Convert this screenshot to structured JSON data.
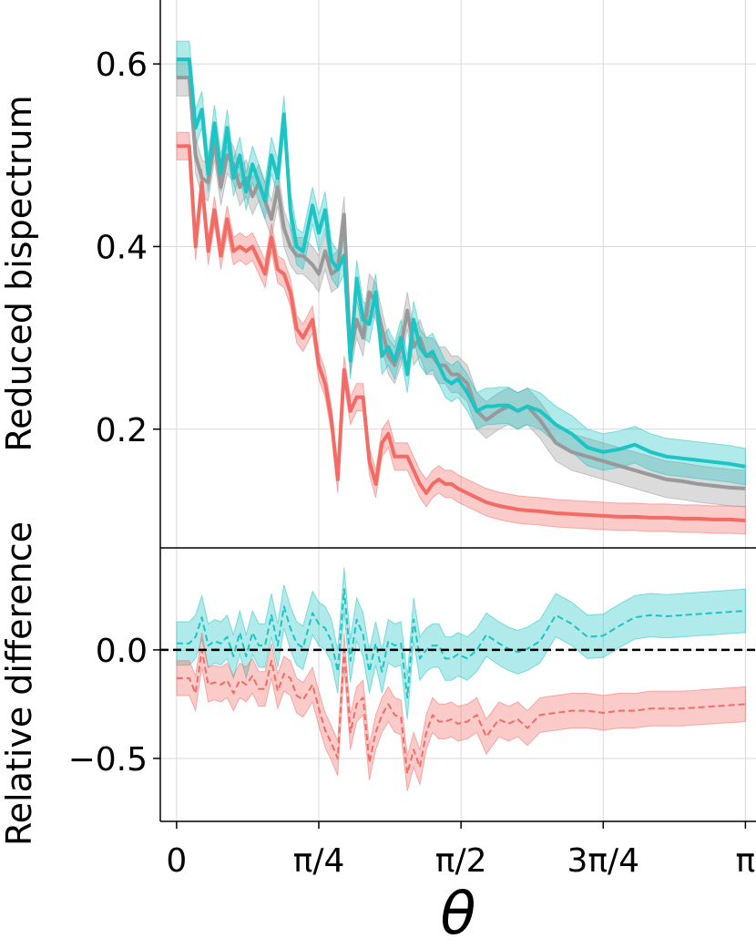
{
  "chart_data": [
    {
      "type": "line",
      "ylabel": "Reduced bispectrum",
      "xlim": [
        -0.09,
        3.2
      ],
      "ylim": [
        0.07,
        0.67
      ],
      "grid": true,
      "yticks": [
        0.2,
        0.4,
        0.6
      ],
      "ytick_labels": [
        "0.2",
        "0.4",
        "0.6"
      ],
      "colors": {
        "gray": "#999999",
        "cyan": "#1cc4c4",
        "red": "#f26b64"
      },
      "x": [
        0.0,
        0.0698,
        0.1047,
        0.1396,
        0.1745,
        0.2094,
        0.2443,
        0.2793,
        0.3142,
        0.3491,
        0.384,
        0.4189,
        0.4538,
        0.4887,
        0.5236,
        0.5585,
        0.5934,
        0.6283,
        0.6632,
        0.6981,
        0.7505,
        0.7854,
        0.8203,
        0.8552,
        0.8901,
        0.925,
        0.9599,
        0.9948,
        1.0297,
        1.0646,
        1.0995,
        1.1345,
        1.1694,
        1.2043,
        1.2392,
        1.2741,
        1.309,
        1.3439,
        1.3788,
        1.4137,
        1.4486,
        1.4835,
        1.5184,
        1.5533,
        1.6057,
        1.6581,
        1.7104,
        1.7453,
        1.7802,
        1.8326,
        1.885,
        1.9373,
        2.0071,
        2.0944,
        2.1817,
        2.2689,
        2.3562,
        2.4435,
        2.5307,
        2.618,
        2.7053,
        2.7925,
        2.8798,
        2.9671,
        3.0543,
        3.1416
      ],
      "series": [
        {
          "color": "gray",
          "style": "solid",
          "values": [
            0.585,
            0.585,
            0.5,
            0.475,
            0.47,
            0.515,
            0.465,
            0.5,
            0.49,
            0.465,
            0.475,
            0.455,
            0.47,
            0.45,
            0.43,
            0.465,
            0.42,
            0.4,
            0.39,
            0.39,
            0.38,
            0.37,
            0.395,
            0.37,
            0.375,
            0.435,
            0.28,
            0.32,
            0.3,
            0.35,
            0.34,
            0.31,
            0.28,
            0.27,
            0.29,
            0.33,
            0.29,
            0.3,
            0.28,
            0.28,
            0.27,
            0.27,
            0.26,
            0.26,
            0.25,
            0.22,
            0.21,
            0.215,
            0.22,
            0.225,
            0.22,
            0.225,
            0.21,
            0.185,
            0.175,
            0.17,
            0.165,
            0.16,
            0.155,
            0.15,
            0.145,
            0.143,
            0.14,
            0.138,
            0.136,
            0.135
          ],
          "band": 0.02
        },
        {
          "color": "cyan",
          "style": "solid",
          "values": [
            0.605,
            0.605,
            0.53,
            0.55,
            0.48,
            0.535,
            0.48,
            0.53,
            0.475,
            0.5,
            0.46,
            0.49,
            0.47,
            0.45,
            0.5,
            0.475,
            0.545,
            0.44,
            0.4,
            0.395,
            0.445,
            0.415,
            0.44,
            0.385,
            0.375,
            0.39,
            0.275,
            0.365,
            0.32,
            0.315,
            0.35,
            0.28,
            0.29,
            0.275,
            0.3,
            0.26,
            0.32,
            0.29,
            0.28,
            0.285,
            0.27,
            0.255,
            0.25,
            0.255,
            0.24,
            0.22,
            0.225,
            0.225,
            0.226,
            0.226,
            0.22,
            0.225,
            0.22,
            0.205,
            0.195,
            0.18,
            0.175,
            0.178,
            0.183,
            0.175,
            0.17,
            0.168,
            0.166,
            0.164,
            0.162,
            0.159
          ],
          "band": 0.02
        },
        {
          "color": "red",
          "style": "solid",
          "values": [
            0.51,
            0.51,
            0.4,
            0.47,
            0.395,
            0.44,
            0.39,
            0.43,
            0.395,
            0.4,
            0.395,
            0.4,
            0.385,
            0.37,
            0.41,
            0.375,
            0.37,
            0.35,
            0.31,
            0.3,
            0.32,
            0.27,
            0.25,
            0.21,
            0.145,
            0.265,
            0.22,
            0.235,
            0.235,
            0.165,
            0.14,
            0.185,
            0.195,
            0.17,
            0.17,
            0.17,
            0.155,
            0.14,
            0.13,
            0.14,
            0.145,
            0.14,
            0.14,
            0.135,
            0.13,
            0.125,
            0.12,
            0.118,
            0.116,
            0.114,
            0.112,
            0.111,
            0.11,
            0.108,
            0.107,
            0.106,
            0.105,
            0.104,
            0.104,
            0.103,
            0.103,
            0.102,
            0.102,
            0.101,
            0.101,
            0.1
          ],
          "band": 0.015
        }
      ]
    },
    {
      "type": "line",
      "ylabel": "Relative difference",
      "xlabel": "θ",
      "xlim": [
        -0.09,
        3.2
      ],
      "ylim": [
        -0.79,
        0.47
      ],
      "grid": true,
      "yticks": [
        -0.5,
        0.0
      ],
      "ytick_labels": [
        "−0.5",
        "0.0"
      ],
      "xticks": [
        0,
        0.7854,
        1.5708,
        2.3562,
        3.1416
      ],
      "xtick_labels": [
        "0",
        "π/4",
        "π/2",
        "3π/4",
        "π"
      ],
      "reference_line": 0.0,
      "series": [
        {
          "color": "cyan",
          "style": "dashed",
          "values": [
            0.03,
            0.03,
            0.06,
            0.15,
            0.02,
            0.04,
            0.03,
            0.06,
            -0.03,
            0.08,
            -0.03,
            0.08,
            0.02,
            0.02,
            0.16,
            0.02,
            0.2,
            0.1,
            0.03,
            0.01,
            0.17,
            0.12,
            0.1,
            0.04,
            -0.1,
            0.28,
            -0.05,
            0.14,
            0.07,
            -0.1,
            0.03,
            -0.1,
            0.04,
            0.02,
            0.03,
            -0.22,
            0.14,
            -0.04,
            0.0,
            0.02,
            0.02,
            -0.04,
            -0.04,
            -0.02,
            -0.04,
            0.0,
            0.07,
            0.05,
            0.03,
            0.005,
            -0.01,
            0.005,
            0.04,
            0.16,
            0.12,
            0.06,
            0.065,
            0.11,
            0.15,
            0.16,
            0.155,
            0.16,
            0.165,
            0.17,
            0.175,
            0.18
          ],
          "band": 0.1
        },
        {
          "color": "red",
          "style": "dashed",
          "values": [
            -0.13,
            -0.13,
            -0.2,
            0.0,
            -0.16,
            -0.15,
            -0.16,
            -0.14,
            -0.2,
            -0.14,
            -0.16,
            -0.12,
            -0.18,
            -0.18,
            -0.05,
            -0.19,
            -0.11,
            -0.13,
            -0.21,
            -0.23,
            -0.16,
            -0.27,
            -0.37,
            -0.43,
            -0.5,
            0.0,
            -0.38,
            -0.25,
            -0.22,
            -0.52,
            -0.38,
            -0.3,
            -0.25,
            -0.3,
            -0.31,
            -0.57,
            -0.46,
            -0.54,
            -0.38,
            -0.3,
            -0.33,
            -0.33,
            -0.32,
            -0.34,
            -0.33,
            -0.3,
            -0.4,
            -0.36,
            -0.32,
            -0.34,
            -0.32,
            -0.36,
            -0.3,
            -0.29,
            -0.28,
            -0.28,
            -0.29,
            -0.28,
            -0.28,
            -0.27,
            -0.27,
            -0.27,
            -0.265,
            -0.26,
            -0.255,
            -0.25
          ],
          "band": 0.08
        }
      ]
    }
  ]
}
